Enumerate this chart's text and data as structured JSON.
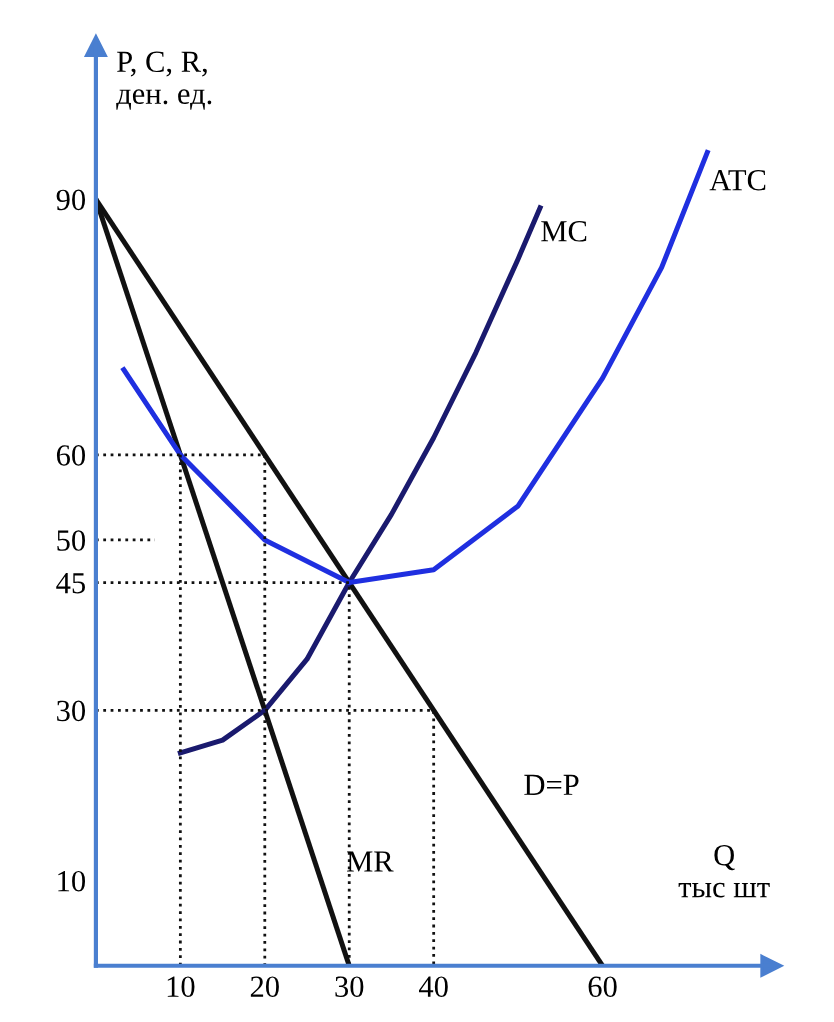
{
  "chart_data": {
    "type": "line",
    "xlabel": "Q\nтыс шт",
    "ylabel": "P, C, R,\nден. ед.",
    "xlim": [
      0,
      80
    ],
    "ylim": [
      0,
      108
    ],
    "xticks": [
      10,
      20,
      30,
      40,
      60
    ],
    "yticks": [
      10,
      30,
      45,
      50,
      60,
      90
    ],
    "grid": false,
    "legend": false,
    "marker": "none",
    "series": [
      {
        "color": "#111111",
        "x": [
          0,
          60
        ],
        "values": [
          90,
          0
        ]
      },
      {
        "color": "#111111",
        "x": [
          0,
          30
        ],
        "values": [
          90,
          0
        ]
      },
      {
        "color": "#1a1a6e",
        "x": [
          10,
          15,
          20,
          25,
          30,
          35,
          40,
          45,
          50,
          52.6
        ],
        "values": [
          25,
          26.5,
          30,
          36,
          45,
          53,
          62,
          72,
          83,
          89
        ]
      },
      {
        "color": "#1f2fe0",
        "x": [
          3.3,
          10,
          20,
          30,
          40,
          50,
          60,
          67,
          72.4
        ],
        "values": [
          70,
          60,
          50,
          45,
          46.5,
          54,
          69,
          82,
          95.5
        ]
      },
      {
        "color": "#111111",
        "line_style": "dotted",
        "x": [
          0,
          20,
          20
        ],
        "values": [
          60,
          60,
          0
        ]
      },
      {
        "color": "#111111",
        "line_style": "dotted",
        "x": [
          10,
          10
        ],
        "values": [
          60,
          0
        ]
      },
      {
        "color": "#111111",
        "line_style": "dotted",
        "x": [
          0,
          30,
          30
        ],
        "values": [
          45,
          45,
          0
        ]
      },
      {
        "color": "#111111",
        "line_style": "dotted",
        "x": [
          0,
          40,
          40
        ],
        "values": [
          30,
          30,
          0
        ]
      },
      {
        "color": "#111111",
        "line_style": "dotted",
        "x": [
          0,
          7
        ],
        "values": [
          50,
          50
        ]
      }
    ],
    "annotations": [
      {
        "text": "MC",
        "x": 50,
        "y": 83
      },
      {
        "text": "ATC",
        "x": 70,
        "y": 89
      },
      {
        "text": "D=P",
        "x": 48,
        "y": 18
      },
      {
        "text": "MR",
        "x": 27,
        "y": 9
      }
    ]
  }
}
